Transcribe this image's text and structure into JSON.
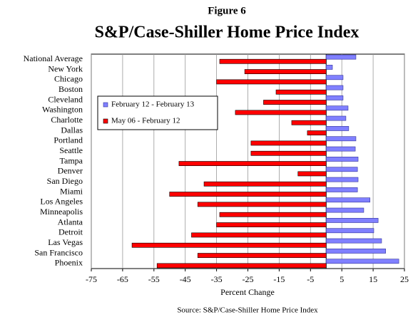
{
  "chart_data": {
    "type": "barh",
    "supertitle": "Figure 6",
    "title": "S&P/Case-Shiller Home Price Index",
    "xlabel": "Percent Change",
    "source": "Source: S&P/Case-Shiller Home Price Index",
    "categories": [
      "National Average",
      "New York",
      "Chicago",
      "Boston",
      "Cleveland",
      "Washington",
      "Charlotte",
      "Dallas",
      "Portland",
      "Seattle",
      "Tampa",
      "Denver",
      "San Diego",
      "Miami",
      "Los Angeles",
      "Minneapolis",
      "Atlanta",
      "Detroit",
      "Las Vegas",
      "San Francisco",
      "Phoenix"
    ],
    "series": [
      {
        "name": "February 12 - February 13",
        "color": "#8080ff",
        "edge": "#333399",
        "values": [
          9.5,
          2,
          5.4,
          5.4,
          5.4,
          7,
          6.3,
          7.2,
          9.5,
          9.3,
          10.2,
          10,
          10.2,
          10,
          14,
          12,
          16.6,
          15.2,
          17.7,
          19,
          23.2
        ]
      },
      {
        "name": "May 06 - February 12",
        "color": "#ff0000",
        "edge": "#000000",
        "values": [
          -34,
          -26,
          -35,
          -16,
          -20,
          -29,
          -11,
          -6,
          -24,
          -24,
          -47,
          -9,
          -39,
          -50,
          -41,
          -34,
          -35,
          -43,
          -62,
          -41,
          -54
        ]
      }
    ],
    "xlim": [
      -75,
      25
    ],
    "xticks": [
      -75,
      -65,
      -55,
      -45,
      -35,
      -25,
      -15,
      -5,
      5,
      15,
      25
    ],
    "grid": true,
    "legend": "upper left"
  }
}
